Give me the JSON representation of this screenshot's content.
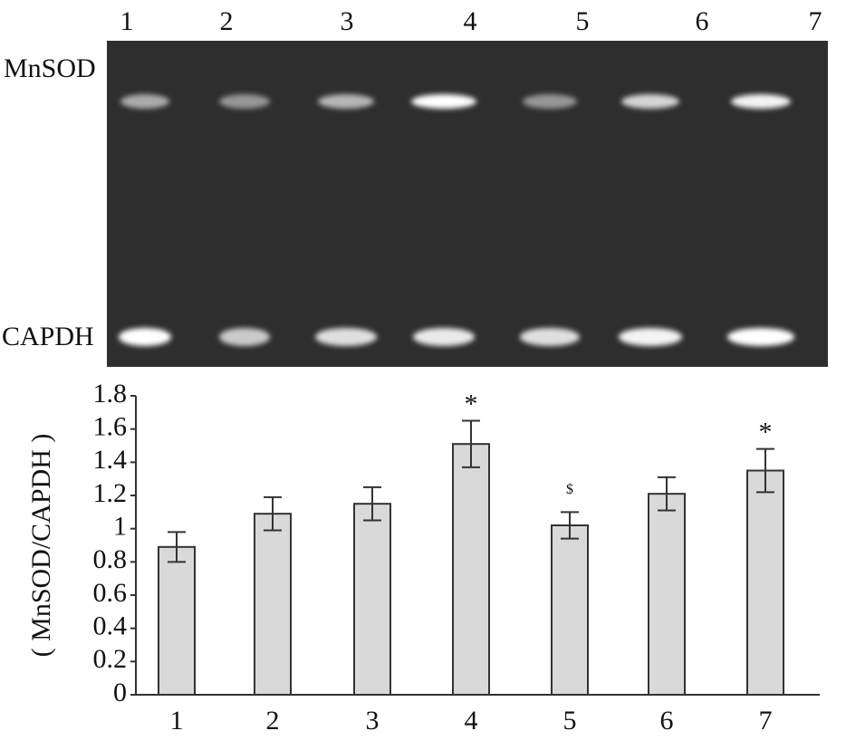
{
  "gel": {
    "lanes": [
      "1",
      "2",
      "3",
      "4",
      "5",
      "6",
      "7"
    ],
    "bands": [
      "MnSOD",
      "CAPDH"
    ]
  },
  "chart_data": {
    "type": "bar",
    "y_label": "( MnSOD/CAPDH )",
    "categories": [
      "1",
      "2",
      "3",
      "4",
      "5",
      "6",
      "7"
    ],
    "values": [
      0.89,
      1.09,
      1.15,
      1.51,
      1.02,
      1.21,
      1.35
    ],
    "errors": [
      0.09,
      0.1,
      0.1,
      0.14,
      0.08,
      0.1,
      0.13
    ],
    "annotations": [
      null,
      null,
      null,
      "*",
      "$",
      null,
      "*"
    ],
    "color": "#d9d9d9",
    "ylim": [
      0,
      1.8
    ],
    "yticks": [
      0,
      0.2,
      0.4,
      0.6,
      0.8,
      1,
      1.2,
      1.4,
      1.6,
      1.8
    ]
  }
}
